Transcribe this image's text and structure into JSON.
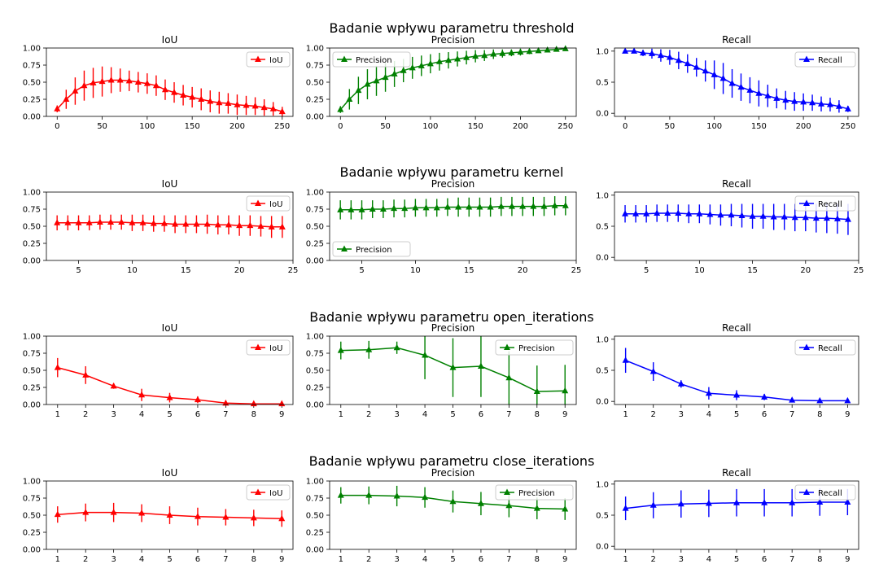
{
  "colors": {
    "iou": "#ff0000",
    "precision": "#008000",
    "recall": "#0000ff"
  },
  "chart_data": [
    {
      "suptitle": "Badanie wpływu parametru threshold",
      "xticks": [
        0,
        50,
        100,
        150,
        200,
        250
      ],
      "x": [
        0,
        10,
        20,
        30,
        40,
        50,
        60,
        70,
        80,
        90,
        100,
        110,
        120,
        130,
        140,
        150,
        160,
        170,
        180,
        190,
        200,
        210,
        220,
        230,
        240,
        250
      ],
      "xlim": [
        -12,
        262
      ],
      "panels": [
        {
          "type": "line",
          "title": "IoU",
          "legend": "IoU",
          "legend_loc": "top-right",
          "color": "iou",
          "ylim": [
            0,
            1
          ],
          "yticks": [
            "0.00",
            "0.25",
            "0.50",
            "0.75",
            "1.00"
          ],
          "values": [
            0.11,
            0.25,
            0.37,
            0.45,
            0.49,
            0.51,
            0.53,
            0.53,
            0.52,
            0.5,
            0.48,
            0.45,
            0.39,
            0.35,
            0.31,
            0.28,
            0.25,
            0.22,
            0.2,
            0.19,
            0.17,
            0.16,
            0.15,
            0.13,
            0.11,
            0.07
          ],
          "errors": [
            0.05,
            0.14,
            0.2,
            0.22,
            0.22,
            0.22,
            0.19,
            0.17,
            0.15,
            0.15,
            0.15,
            0.15,
            0.15,
            0.15,
            0.15,
            0.15,
            0.16,
            0.16,
            0.16,
            0.15,
            0.15,
            0.14,
            0.13,
            0.12,
            0.1,
            0.07
          ]
        },
        {
          "type": "line",
          "title": "Precision",
          "legend": "Precision",
          "legend_loc": "top-left",
          "color": "precision",
          "ylim": [
            0,
            1
          ],
          "yticks": [
            "0.00",
            "0.25",
            "0.50",
            "0.75",
            "1.00"
          ],
          "values": [
            0.1,
            0.25,
            0.38,
            0.47,
            0.52,
            0.57,
            0.62,
            0.67,
            0.71,
            0.74,
            0.77,
            0.8,
            0.82,
            0.84,
            0.86,
            0.88,
            0.89,
            0.91,
            0.92,
            0.93,
            0.94,
            0.95,
            0.96,
            0.97,
            0.98,
            0.99
          ],
          "errors": [
            0.05,
            0.15,
            0.2,
            0.22,
            0.22,
            0.21,
            0.19,
            0.17,
            0.16,
            0.15,
            0.14,
            0.13,
            0.12,
            0.11,
            0.1,
            0.09,
            0.08,
            0.07,
            0.06,
            0.05,
            0.05,
            0.04,
            0.03,
            0.03,
            0.02,
            0.01
          ]
        },
        {
          "type": "line",
          "title": "Recall",
          "legend": "Recall",
          "legend_loc": "top-right",
          "color": "recall",
          "ylim": [
            -0.05,
            1.05
          ],
          "yticks": [
            "0.0",
            "0.5",
            "1.0"
          ],
          "values": [
            1.0,
            1.0,
            0.97,
            0.96,
            0.93,
            0.9,
            0.85,
            0.8,
            0.74,
            0.68,
            0.62,
            0.56,
            0.48,
            0.42,
            0.37,
            0.32,
            0.28,
            0.24,
            0.21,
            0.19,
            0.18,
            0.17,
            0.15,
            0.14,
            0.11,
            0.07
          ],
          "errors": [
            0.01,
            0.02,
            0.05,
            0.08,
            0.1,
            0.12,
            0.14,
            0.15,
            0.15,
            0.17,
            0.23,
            0.25,
            0.23,
            0.22,
            0.21,
            0.21,
            0.18,
            0.16,
            0.15,
            0.15,
            0.14,
            0.13,
            0.12,
            0.11,
            0.1,
            0.05
          ]
        }
      ]
    },
    {
      "suptitle": "Badanie wpływu parametru kernel",
      "xticks": [
        5,
        10,
        15,
        20,
        25
      ],
      "x": [
        3,
        4,
        5,
        6,
        7,
        8,
        9,
        10,
        11,
        12,
        13,
        14,
        15,
        16,
        17,
        18,
        19,
        20,
        21,
        22,
        23,
        24
      ],
      "xlim": [
        2,
        25
      ],
      "panels": [
        {
          "type": "line",
          "title": "IoU",
          "legend": "IoU",
          "legend_loc": "top-right",
          "color": "iou",
          "ylim": [
            0,
            1
          ],
          "yticks": [
            "0.00",
            "0.25",
            "0.50",
            "0.75",
            "1.00"
          ],
          "values": [
            0.55,
            0.55,
            0.55,
            0.55,
            0.56,
            0.56,
            0.56,
            0.55,
            0.55,
            0.54,
            0.54,
            0.53,
            0.53,
            0.53,
            0.53,
            0.52,
            0.52,
            0.51,
            0.51,
            0.5,
            0.49,
            0.49
          ],
          "errors": [
            0.11,
            0.11,
            0.11,
            0.11,
            0.11,
            0.11,
            0.11,
            0.12,
            0.12,
            0.12,
            0.12,
            0.13,
            0.13,
            0.13,
            0.14,
            0.14,
            0.14,
            0.15,
            0.15,
            0.15,
            0.16,
            0.16
          ]
        },
        {
          "type": "line",
          "title": "Precision",
          "legend": "Precision",
          "legend_loc": "bottom-left",
          "color": "precision",
          "ylim": [
            0,
            1
          ],
          "yticks": [
            "0.00",
            "0.25",
            "0.50",
            "0.75",
            "1.00"
          ],
          "values": [
            0.74,
            0.74,
            0.74,
            0.75,
            0.75,
            0.76,
            0.76,
            0.77,
            0.77,
            0.77,
            0.78,
            0.78,
            0.78,
            0.78,
            0.78,
            0.79,
            0.79,
            0.79,
            0.79,
            0.79,
            0.8,
            0.8
          ],
          "errors": [
            0.14,
            0.14,
            0.14,
            0.13,
            0.13,
            0.13,
            0.13,
            0.13,
            0.13,
            0.13,
            0.13,
            0.14,
            0.14,
            0.14,
            0.14,
            0.14,
            0.14,
            0.14,
            0.14,
            0.14,
            0.14,
            0.14
          ]
        },
        {
          "type": "line",
          "title": "Recall",
          "legend": "Recall",
          "legend_loc": "top-right",
          "color": "recall",
          "ylim": [
            -0.05,
            1.05
          ],
          "yticks": [
            "0.0",
            "0.5",
            "1.0"
          ],
          "values": [
            0.7,
            0.7,
            0.7,
            0.71,
            0.71,
            0.71,
            0.7,
            0.7,
            0.69,
            0.68,
            0.68,
            0.67,
            0.66,
            0.66,
            0.65,
            0.65,
            0.64,
            0.64,
            0.63,
            0.63,
            0.62,
            0.61
          ],
          "errors": [
            0.14,
            0.14,
            0.14,
            0.14,
            0.14,
            0.14,
            0.15,
            0.15,
            0.16,
            0.17,
            0.18,
            0.19,
            0.2,
            0.2,
            0.21,
            0.21,
            0.22,
            0.22,
            0.23,
            0.24,
            0.24,
            0.25
          ]
        }
      ]
    },
    {
      "suptitle": "Badanie wpływu parametru open_iterations",
      "xticks": [
        1,
        2,
        3,
        4,
        5,
        6,
        7,
        8,
        9
      ],
      "x": [
        1,
        2,
        3,
        4,
        5,
        6,
        7,
        8,
        9
      ],
      "xlim": [
        0.6,
        9.4
      ],
      "panels": [
        {
          "type": "line",
          "title": "IoU",
          "legend": "IoU",
          "legend_loc": "top-right",
          "color": "iou",
          "ylim": [
            0,
            1
          ],
          "yticks": [
            "0.00",
            "0.25",
            "0.50",
            "0.75",
            "1.00"
          ],
          "values": [
            0.54,
            0.43,
            0.27,
            0.14,
            0.1,
            0.07,
            0.02,
            0.01,
            0.01
          ],
          "errors": [
            0.14,
            0.13,
            0.04,
            0.09,
            0.07,
            0.05,
            0.02,
            0.01,
            0.01
          ]
        },
        {
          "type": "line",
          "title": "Precision",
          "legend": "Precision",
          "legend_loc": "top-right",
          "color": "precision",
          "ylim": [
            0,
            1
          ],
          "yticks": [
            "0.00",
            "0.25",
            "0.50",
            "0.75",
            "1.00"
          ],
          "values": [
            0.79,
            0.8,
            0.83,
            0.72,
            0.54,
            0.56,
            0.39,
            0.19,
            0.2
          ],
          "errors": [
            0.13,
            0.13,
            0.09,
            0.35,
            0.43,
            0.45,
            0.39,
            0.38,
            0.38
          ]
        },
        {
          "type": "line",
          "title": "Recall",
          "legend": "Recall",
          "legend_loc": "top-right",
          "color": "recall",
          "ylim": [
            -0.05,
            1.05
          ],
          "yticks": [
            "0.0",
            "0.5",
            "1.0"
          ],
          "values": [
            0.66,
            0.48,
            0.28,
            0.13,
            0.1,
            0.07,
            0.02,
            0.01,
            0.01
          ],
          "errors": [
            0.2,
            0.15,
            0.06,
            0.1,
            0.08,
            0.05,
            0.02,
            0.01,
            0.01
          ]
        }
      ]
    },
    {
      "suptitle": "Badanie wpływu parametru close_iterations",
      "xticks": [
        1,
        2,
        3,
        4,
        5,
        6,
        7,
        8,
        9
      ],
      "x": [
        1,
        2,
        3,
        4,
        5,
        6,
        7,
        8,
        9
      ],
      "xlim": [
        0.6,
        9.4
      ],
      "panels": [
        {
          "type": "line",
          "title": "IoU",
          "legend": "IoU",
          "legend_loc": "top-right",
          "color": "iou",
          "ylim": [
            0,
            1
          ],
          "yticks": [
            "0.00",
            "0.25",
            "0.50",
            "0.75",
            "1.00"
          ],
          "values": [
            0.51,
            0.54,
            0.54,
            0.53,
            0.5,
            0.48,
            0.47,
            0.46,
            0.45
          ],
          "errors": [
            0.12,
            0.13,
            0.14,
            0.13,
            0.13,
            0.13,
            0.12,
            0.12,
            0.12
          ]
        },
        {
          "type": "line",
          "title": "Precision",
          "legend": "Precision",
          "legend_loc": "top-right",
          "color": "precision",
          "ylim": [
            0,
            1
          ],
          "yticks": [
            "0.00",
            "0.25",
            "0.50",
            "0.75",
            "1.00"
          ],
          "values": [
            0.79,
            0.79,
            0.78,
            0.76,
            0.7,
            0.67,
            0.64,
            0.6,
            0.59
          ],
          "errors": [
            0.12,
            0.13,
            0.15,
            0.15,
            0.16,
            0.17,
            0.17,
            0.16,
            0.16
          ]
        },
        {
          "type": "line",
          "title": "Recall",
          "legend": "Recall",
          "legend_loc": "top-right",
          "color": "recall",
          "ylim": [
            -0.05,
            1.05
          ],
          "yticks": [
            "0.0",
            "0.5",
            "1.0"
          ],
          "values": [
            0.61,
            0.66,
            0.68,
            0.69,
            0.7,
            0.7,
            0.7,
            0.71,
            0.71
          ],
          "errors": [
            0.19,
            0.21,
            0.22,
            0.22,
            0.22,
            0.22,
            0.22,
            0.22,
            0.21
          ]
        }
      ]
    }
  ]
}
